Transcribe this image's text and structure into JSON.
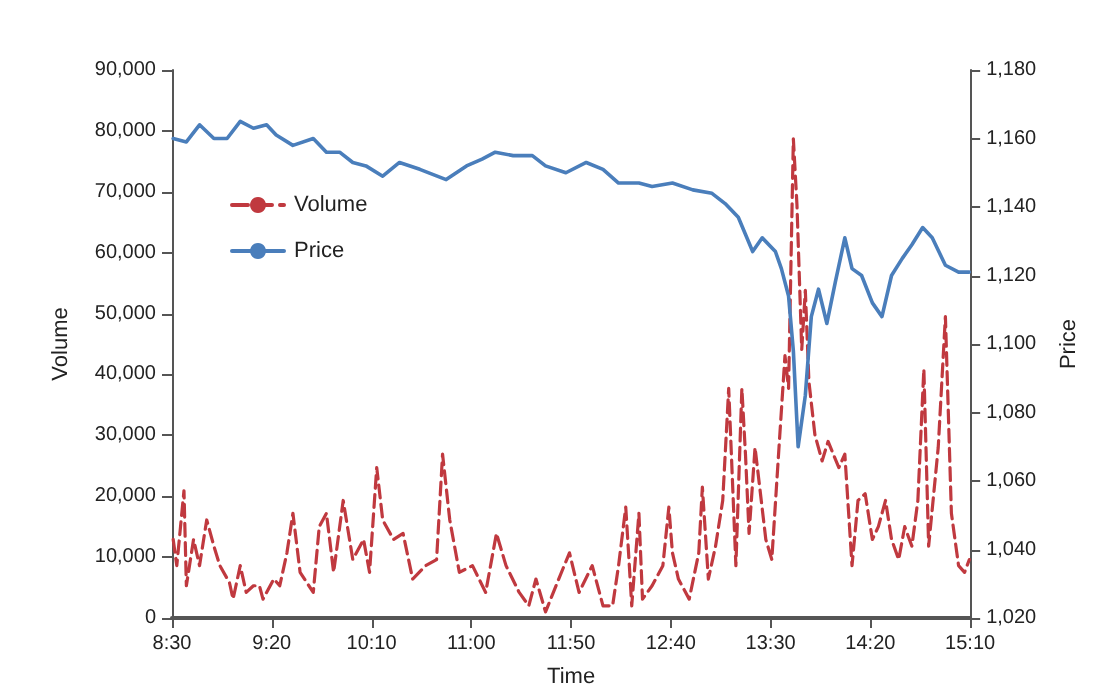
{
  "chart_data": {
    "type": "line",
    "xlabel": "Time",
    "ylabel": "Volume",
    "y2label": "Price",
    "legend": "top left",
    "marker": "none",
    "xlim": [
      8.5,
      15.1667
    ],
    "xticks": [
      {
        "value": 8.5,
        "label": "8:30"
      },
      {
        "value": 9.3333,
        "label": "9:20"
      },
      {
        "value": 10.1667,
        "label": "10:10"
      },
      {
        "value": 11,
        "label": "11:00"
      },
      {
        "value": 11.8333,
        "label": "11:50"
      },
      {
        "value": 12.6667,
        "label": "12:40"
      },
      {
        "value": 13.5,
        "label": "13:30"
      },
      {
        "value": 14.3333,
        "label": "14:20"
      },
      {
        "value": 15.1667,
        "label": "15:10"
      }
    ],
    "ylim": [
      0,
      90000
    ],
    "yticks": [
      {
        "value": 0,
        "label": "0"
      },
      {
        "value": 10000,
        "label": "10,000"
      },
      {
        "value": 20000,
        "label": "20,000"
      },
      {
        "value": 30000,
        "label": "30,000"
      },
      {
        "value": 40000,
        "label": "40,000"
      },
      {
        "value": 50000,
        "label": "50,000"
      },
      {
        "value": 60000,
        "label": "60,000"
      },
      {
        "value": 70000,
        "label": "70,000"
      },
      {
        "value": 80000,
        "label": "80,000"
      },
      {
        "value": 90000,
        "label": "90,000"
      }
    ],
    "y2lim": [
      1020,
      1180
    ],
    "y2ticks": [
      {
        "value": 1020,
        "label": "1,020"
      },
      {
        "value": 1040,
        "label": "1,040"
      },
      {
        "value": 1060,
        "label": "1,060"
      },
      {
        "value": 1080,
        "label": "1,080"
      },
      {
        "value": 1100,
        "label": "1,100"
      },
      {
        "value": 1120,
        "label": "1,120"
      },
      {
        "value": 1140,
        "label": "1,140"
      },
      {
        "value": 1160,
        "label": "1,160"
      },
      {
        "value": 1180,
        "label": "1,180"
      }
    ],
    "series": [
      {
        "name": "Volume",
        "color": "#c0393f",
        "line_style": "dashed",
        "x": [
          8.51,
          8.54,
          8.6,
          8.62,
          8.68,
          8.73,
          8.79,
          8.85,
          8.9,
          8.98,
          9.01,
          9.07,
          9.12,
          9.18,
          9.23,
          9.26,
          9.35,
          9.4,
          9.46,
          9.51,
          9.57,
          9.68,
          9.73,
          9.79,
          9.85,
          9.93,
          10.01,
          10.1,
          10.15,
          10.21,
          10.26,
          10.35,
          10.43,
          10.51,
          10.62,
          10.71,
          10.76,
          10.82,
          10.9,
          11.01,
          11.12,
          11.21,
          11.29,
          11.4,
          11.48,
          11.54,
          11.62,
          11.73,
          11.82,
          11.9,
          12.01,
          12.1,
          12.18,
          12.23,
          12.29,
          12.32,
          12.34,
          12.4,
          12.43,
          12.51,
          12.6,
          12.65,
          12.68,
          12.73,
          12.82,
          12.9,
          12.93,
          12.98,
          13.04,
          13.1,
          13.15,
          13.21,
          13.26,
          13.29,
          13.32,
          13.37,
          13.46,
          13.51,
          13.57,
          13.62,
          13.65,
          13.69,
          13.72,
          13.76,
          13.79,
          13.82,
          13.87,
          13.93,
          13.98,
          14.07,
          14.12,
          14.18,
          14.23,
          14.29,
          14.35,
          14.4,
          14.46,
          14.51,
          14.57,
          14.62,
          14.68,
          14.73,
          14.78,
          14.82,
          14.9,
          14.96,
          15.01,
          15.07,
          15.12,
          15.16
        ],
        "values": [
          12900,
          8600,
          20900,
          5300,
          12900,
          8600,
          16100,
          11800,
          8600,
          5800,
          3100,
          8600,
          4200,
          5300,
          5300,
          3100,
          6400,
          5300,
          10700,
          17200,
          7500,
          4200,
          15000,
          17200,
          7500,
          19300,
          9600,
          12900,
          7500,
          24700,
          16100,
          12900,
          13900,
          6400,
          8600,
          9600,
          26900,
          16100,
          7500,
          8600,
          4200,
          13900,
          8600,
          4200,
          2000,
          6400,
          1000,
          6400,
          10700,
          4200,
          8600,
          2000,
          2000,
          8600,
          18200,
          8600,
          2000,
          17200,
          3100,
          5300,
          8600,
          18200,
          10700,
          6400,
          3100,
          10700,
          21500,
          6400,
          11800,
          19300,
          37700,
          8600,
          37700,
          26900,
          13900,
          28000,
          12900,
          9600,
          28000,
          43100,
          37700,
          78700,
          67900,
          44100,
          53800,
          38800,
          30100,
          25800,
          29000,
          24700,
          26900,
          8600,
          19300,
          20400,
          12900,
          15000,
          19300,
          12900,
          9600,
          15000,
          11800,
          19300,
          40900,
          11800,
          28000,
          49500,
          17200,
          8600,
          7500,
          9600
        ]
      },
      {
        "name": "Price",
        "color": "#4a7ebb",
        "line_style": "solid",
        "axis": "y2",
        "x": [
          8.51,
          8.62,
          8.73,
          8.85,
          8.96,
          9.07,
          9.18,
          9.29,
          9.37,
          9.51,
          9.68,
          9.79,
          9.9,
          10.01,
          10.12,
          10.26,
          10.4,
          10.57,
          10.79,
          10.96,
          11.09,
          11.2,
          11.35,
          11.51,
          11.62,
          11.79,
          11.96,
          12.1,
          12.23,
          12.4,
          12.51,
          12.68,
          12.85,
          13.01,
          13.12,
          13.23,
          13.35,
          13.43,
          13.54,
          13.59,
          13.65,
          13.69,
          13.73,
          13.79,
          13.84,
          13.9,
          13.97,
          14.04,
          14.12,
          14.18,
          14.26,
          14.35,
          14.43,
          14.51,
          14.6,
          14.68,
          14.77,
          14.85,
          14.96,
          15.07,
          15.16
        ],
        "values": [
          1160,
          1159,
          1164,
          1160,
          1160,
          1165,
          1163,
          1164,
          1161,
          1158,
          1160,
          1156,
          1156,
          1153,
          1152,
          1149,
          1153,
          1151,
          1148,
          1152,
          1154,
          1156,
          1155,
          1155,
          1152,
          1150,
          1153,
          1151,
          1147,
          1147,
          1146,
          1147,
          1145,
          1144,
          1141,
          1137,
          1127,
          1131,
          1127,
          1122,
          1114,
          1098,
          1070,
          1085,
          1108,
          1116,
          1106,
          1118,
          1131,
          1122,
          1120,
          1112,
          1108,
          1120,
          1125,
          1129,
          1134,
          1131,
          1123,
          1121,
          1121
        ]
      }
    ]
  }
}
